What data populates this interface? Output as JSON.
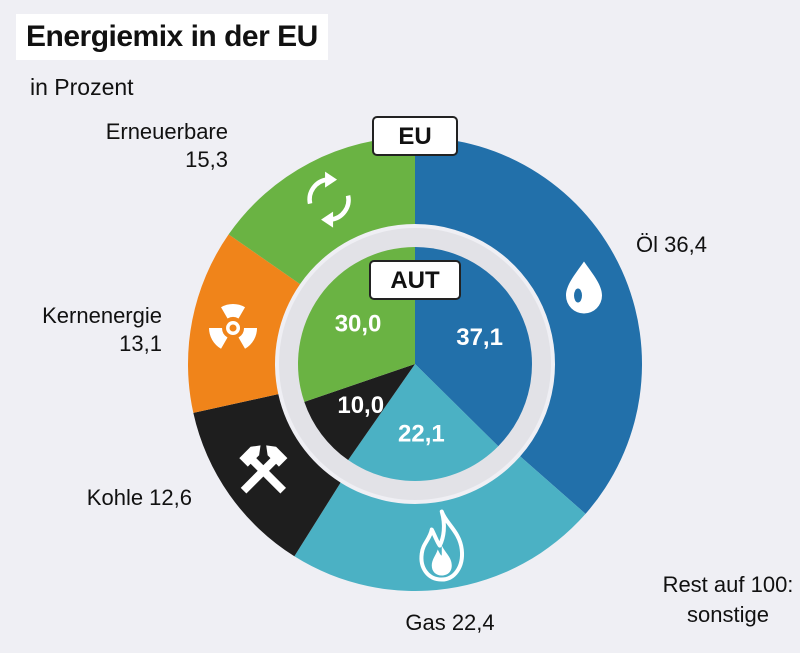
{
  "title": "Energiemix in der EU",
  "subtitle": "in Prozent",
  "footnote": [
    "Rest auf 100:",
    "sonstige"
  ],
  "colors": {
    "oil": "#2270aa",
    "gas": "#4bb1c4",
    "coal": "#1e1e1e",
    "nuclear": "#f0841a",
    "renewable": "#6ab343",
    "background": "#efeff4"
  },
  "chart_data": {
    "type": "pie",
    "unit": "in Prozent",
    "rings": [
      {
        "name": "EU",
        "slices": [
          {
            "label": "Öl",
            "value": 36.4,
            "display": "Öl 36,4",
            "icon": "oil-drop-icon"
          },
          {
            "label": "Gas",
            "value": 22.4,
            "display": "Gas 22,4",
            "icon": "flame-icon"
          },
          {
            "label": "Kohle",
            "value": 12.6,
            "display": "Kohle 12,6",
            "icon": "crossed-hammers-icon"
          },
          {
            "label": "Kernenergie",
            "value": 13.1,
            "display": [
              "Kernenergie",
              "13,1"
            ],
            "icon": "radiation-icon"
          },
          {
            "label": "Erneuerbare",
            "value": 15.3,
            "display": [
              "Erneuerbare",
              "15,3"
            ],
            "icon": "recycle-icon"
          }
        ]
      },
      {
        "name": "AUT",
        "slices": [
          {
            "label": "Öl",
            "value": 37.1,
            "display": "37,1"
          },
          {
            "label": "Gas",
            "value": 22.1,
            "display": "22,1"
          },
          {
            "label": "Kohle",
            "value": 10.0,
            "display": "10,0"
          },
          {
            "label": "Kernenergie",
            "value": 0,
            "display": ""
          },
          {
            "label": "Erneuerbare",
            "value": 30.0,
            "display": "30,0"
          }
        ]
      }
    ]
  }
}
